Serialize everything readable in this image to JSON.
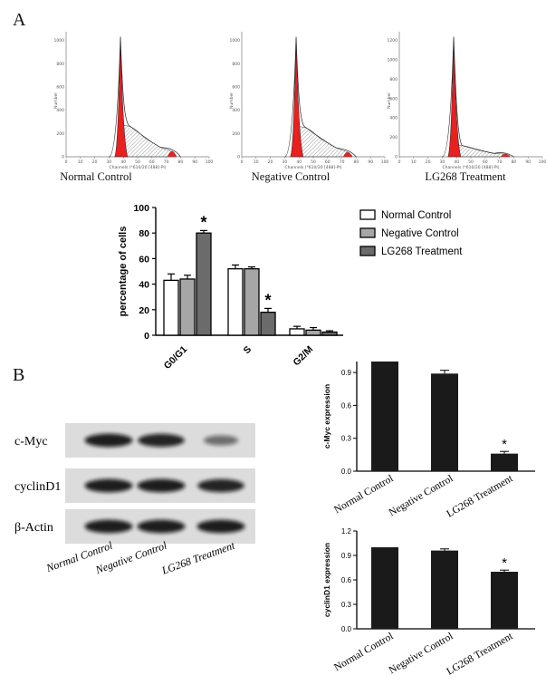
{
  "panel_labels": {
    "a": "A",
    "b": "B"
  },
  "histograms": [
    {
      "caption": "Normal Control",
      "y_label": "Number",
      "x_label": "Channels (*610/20 [488]-PI)",
      "x_ticks": [
        "0",
        "10",
        "20",
        "30",
        "40",
        "50",
        "60",
        "70",
        "80",
        "90",
        "100"
      ],
      "y_ticks": [
        "0",
        "200",
        "400",
        "600",
        "800",
        "1000"
      ],
      "s_level": 0.25,
      "g2_level": 0.06
    },
    {
      "caption": "Negative Control",
      "y_label": "Number",
      "x_label": "Channels (*610/20 [488]-PI)",
      "x_ticks": [
        "0",
        "10",
        "20",
        "30",
        "40",
        "50",
        "60",
        "70",
        "80",
        "90",
        "100"
      ],
      "y_ticks": [
        "0",
        "200",
        "400",
        "600",
        "800",
        "1000"
      ],
      "s_level": 0.24,
      "g2_level": 0.05
    },
    {
      "caption": "LG268 Treatment",
      "y_label": "Number",
      "x_label": "Channels (*610/20 [488]-PI)",
      "x_ticks": [
        "0",
        "10",
        "20",
        "30",
        "40",
        "50",
        "60",
        "70",
        "80",
        "90",
        "100"
      ],
      "y_ticks": [
        "0",
        "200",
        "400",
        "600",
        "800",
        "1000",
        "1200"
      ],
      "s_level": 0.09,
      "g2_level": 0.03
    }
  ],
  "chart_data": [
    {
      "type": "bar",
      "ylabel": "percentage of cells",
      "categories": [
        "G0/G1",
        "S",
        "G2/M"
      ],
      "ylim": [
        0,
        100
      ],
      "yticks": [
        "0",
        "20",
        "40",
        "60",
        "80",
        "100"
      ],
      "legend_position": "right",
      "series": [
        {
          "name": "Normal Control",
          "values": [
            43,
            52,
            5
          ],
          "errors": [
            5,
            3,
            2
          ],
          "color": "#ffffff"
        },
        {
          "name": "Negative Control",
          "values": [
            44,
            52,
            4
          ],
          "errors": [
            3,
            1.5,
            2
          ],
          "color": "#a6a6a6"
        },
        {
          "name": "LG268 Treatment",
          "values": [
            80,
            18,
            2.5
          ],
          "errors": [
            2,
            3,
            1
          ],
          "color": "#6b6b6b"
        }
      ],
      "annotations": [
        {
          "category": "G0/G1",
          "series": "LG268 Treatment",
          "text": "*"
        },
        {
          "category": "S",
          "series": "LG268 Treatment",
          "text": "*"
        }
      ]
    },
    {
      "type": "bar",
      "ylabel": "c-Myc expression",
      "categories": [
        "Normal Control",
        "Negative Control",
        "LG268 Treatment"
      ],
      "ylim": [
        0,
        1.0
      ],
      "yticks": [
        "0.0",
        "0.3",
        "0.6",
        "0.9"
      ],
      "values": [
        1.0,
        0.89,
        0.16
      ],
      "errors": [
        0,
        0.03,
        0.02
      ],
      "annotations": [
        {
          "category": "LG268 Treatment",
          "text": "*"
        }
      ]
    },
    {
      "type": "bar",
      "ylabel": "cyclinD1 expression",
      "categories": [
        "Normal Control",
        "Negative Control",
        "LG268 Treatment"
      ],
      "ylim": [
        0,
        1.2
      ],
      "yticks": [
        "0.0",
        "0.3",
        "0.6",
        "0.9",
        "1.2"
      ],
      "values": [
        1.0,
        0.96,
        0.7
      ],
      "errors": [
        0,
        0.02,
        0.02
      ],
      "annotations": [
        {
          "category": "LG268 Treatment",
          "text": "*"
        }
      ]
    }
  ],
  "blot": {
    "rows": [
      {
        "label": "c-Myc",
        "bands": [
          0.95,
          0.9,
          0.35
        ]
      },
      {
        "label": "cyclinD1",
        "bands": [
          0.95,
          0.95,
          0.9
        ]
      },
      {
        "label": "β-Actin",
        "bands": [
          0.95,
          0.95,
          0.95
        ]
      }
    ],
    "lanes": [
      "Normal Control",
      "Negative Control",
      "LG268 Treatment"
    ]
  }
}
